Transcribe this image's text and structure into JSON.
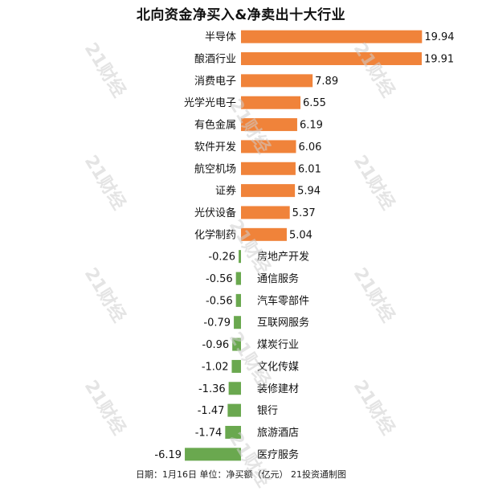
{
  "title": "北向资金净买入&净卖出十大行业",
  "footer": "日期：1月16日 单位：净买额（亿元） 21投资通制图",
  "watermark": "21财经",
  "colors": {
    "positive": "#f0833a",
    "negative": "#6aa84f",
    "text": "#111111"
  },
  "chart_data": {
    "type": "bar",
    "orientation": "horizontal",
    "title": "北向资金净买入&净卖出十大行业",
    "categories": [
      "半导体",
      "酿酒行业",
      "消费电子",
      "光学光电子",
      "有色金属",
      "软件开发",
      "航空机场",
      "证券",
      "光伏设备",
      "化学制药",
      "房地产开发",
      "通信服务",
      "汽车零部件",
      "互联网服务",
      "煤炭行业",
      "文化传媒",
      "装修建材",
      "银行",
      "旅游酒店",
      "医疗服务"
    ],
    "values": [
      19.94,
      19.91,
      7.89,
      6.55,
      6.19,
      6.06,
      6.01,
      5.94,
      5.37,
      5.04,
      -0.26,
      -0.56,
      -0.56,
      -0.79,
      -0.96,
      -1.02,
      -1.36,
      -1.47,
      -1.74,
      -6.19
    ],
    "value_labels": [
      "19.94",
      "19.91",
      "7.89",
      "6.55",
      "6.19",
      "6.06",
      "6.01",
      "5.94",
      "5.37",
      "5.04",
      "-0.26",
      "-0.56",
      "-0.56",
      "-0.79",
      "-0.96",
      "-1.02",
      "-1.36",
      "-1.47",
      "-1.74",
      "-6.19"
    ],
    "unit": "亿元",
    "grid": false,
    "legend": "none"
  }
}
